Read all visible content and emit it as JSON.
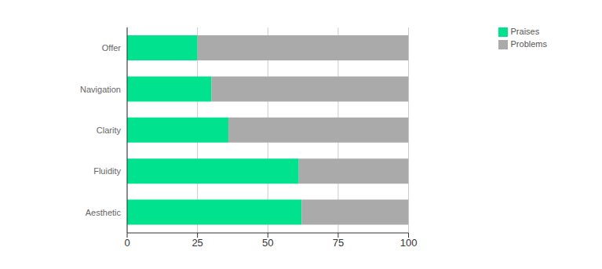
{
  "chart_data": {
    "type": "bar",
    "orientation": "horizontal",
    "stacked": true,
    "categories": [
      "Offer",
      "Navigation",
      "Clarity",
      "Fluidity",
      "Aesthetic"
    ],
    "series": [
      {
        "name": "Praises",
        "color": "#00e28e",
        "values": [
          25,
          30,
          36,
          61,
          62
        ]
      },
      {
        "name": "Problems",
        "color": "#aaaaaa",
        "values": [
          75,
          70,
          64,
          39,
          38
        ]
      }
    ],
    "xlim": [
      0,
      100
    ],
    "xticks": [
      0,
      25,
      50,
      75,
      100
    ],
    "grid": true,
    "legend": "upper right"
  }
}
